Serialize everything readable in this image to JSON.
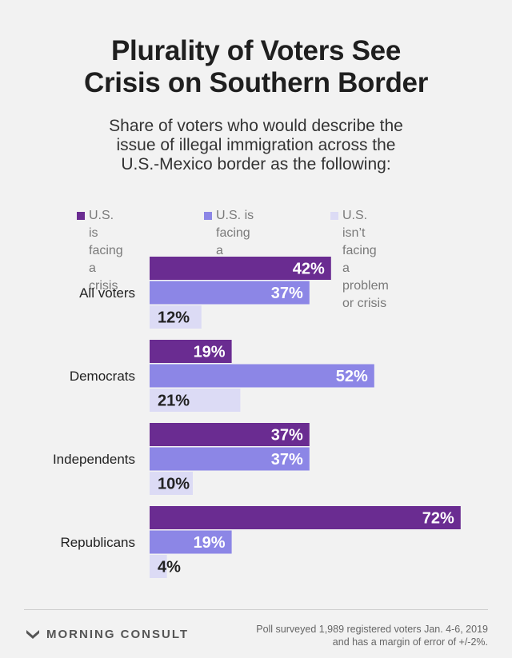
{
  "header": {
    "title_line1": "Plurality of Voters See",
    "title_line2": "Crisis on Southern Border",
    "subtitle_line1": "Share of voters who would describe the",
    "subtitle_line2": "issue of illegal immigration across the",
    "subtitle_line3": "U.S.-Mexico border as the following:"
  },
  "legend": [
    {
      "label": "U.S. is facing\na crisis",
      "color": "#6a2c91"
    },
    {
      "label": "U.S. is facing\na problem",
      "color": "#8c86e6"
    },
    {
      "label": "U.S. isn’t facing\na problem or crisis",
      "color": "#dcdbf5"
    }
  ],
  "chart_data": {
    "type": "bar",
    "orientation": "horizontal",
    "categories": [
      "All voters",
      "Democrats",
      "Independents",
      "Republicans"
    ],
    "series": [
      {
        "name": "U.S. is facing a crisis",
        "values": [
          42,
          19,
          37,
          72
        ],
        "color": "#6a2c91",
        "label_color": "#ffffff"
      },
      {
        "name": "U.S. is facing a problem",
        "values": [
          37,
          52,
          37,
          19
        ],
        "color": "#8c86e6",
        "label_color": "#ffffff"
      },
      {
        "name": "U.S. isn’t facing a problem or crisis",
        "values": [
          12,
          21,
          10,
          4
        ],
        "color": "#dcdbf5",
        "label_color": "#222222"
      }
    ],
    "value_suffix": "%",
    "grid": false,
    "legend_position": "top"
  },
  "footer": {
    "brand": "MORNING CONSULT",
    "note": "Poll surveyed 1,989 registered voters Jan. 4-6, 2019\nand has a margin of error of +/-2%."
  }
}
